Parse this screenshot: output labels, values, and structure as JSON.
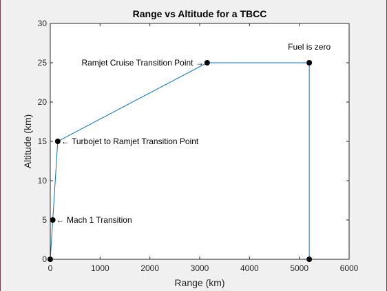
{
  "chart_data": {
    "type": "line",
    "title": "Range vs Altitude for a TBCC",
    "xlabel": "Range (km)",
    "ylabel": "Altitude (km)",
    "xlim": [
      0,
      6000
    ],
    "ylim": [
      0,
      30
    ],
    "xticks": [
      "0",
      "1000",
      "2000",
      "3000",
      "4000",
      "5000",
      "6000"
    ],
    "yticks": [
      "0",
      "5",
      "10",
      "15",
      "20",
      "25",
      "30"
    ],
    "grid": false,
    "series": [
      {
        "x": [
          0,
          50,
          150,
          3150,
          5200,
          5200
        ],
        "y": [
          0,
          5,
          15,
          25,
          25,
          0
        ],
        "color": "#0072bd",
        "marker_color": "#000000"
      }
    ],
    "annotations": [
      {
        "text": "← Mach 1 Transition",
        "x": 50,
        "y": 5,
        "anchor": "right-of"
      },
      {
        "text": "← Turbojet to Ramjet Transition Point",
        "x": 150,
        "y": 15,
        "anchor": "right-of"
      },
      {
        "text": "Ramjet Cruise Transition Point →",
        "x": 3150,
        "y": 25,
        "anchor": "left-of"
      },
      {
        "text": "Fuel is zero",
        "x": 5200,
        "y": 25,
        "anchor": "above"
      }
    ]
  }
}
